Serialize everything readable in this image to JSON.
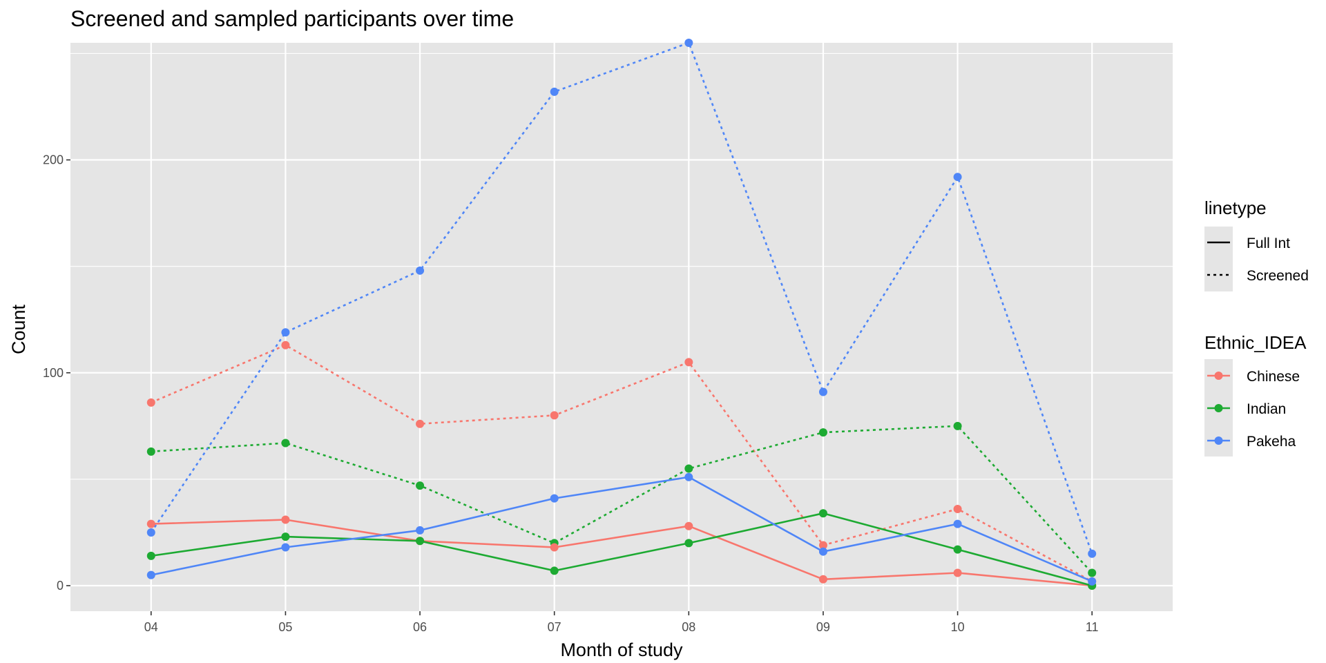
{
  "chart_data": {
    "type": "line",
    "title": "Screened and sampled participants over time",
    "xlabel": "Month of study",
    "ylabel": "Count",
    "categories": [
      "04",
      "05",
      "06",
      "07",
      "08",
      "09",
      "10",
      "11"
    ],
    "ylim": [
      -12,
      255
    ],
    "yticks": [
      0,
      100,
      200
    ],
    "yminor": [
      50,
      150,
      250
    ],
    "colors": {
      "Chinese": "#F8766D",
      "Indian": "#1DAA32",
      "Pakeha": "#4F86F7",
      "panel": "#E5E5E5"
    },
    "legend_linetype": {
      "title": "linetype",
      "items": [
        {
          "label": "Full Int",
          "dash": "solid"
        },
        {
          "label": "Screened",
          "dash": "dotted"
        }
      ]
    },
    "legend_color": {
      "title": "Ethnic_IDEA",
      "items": [
        {
          "label": "Chinese",
          "key": "Chinese"
        },
        {
          "label": "Indian",
          "key": "Indian"
        },
        {
          "label": "Pakeha",
          "key": "Pakeha"
        }
      ]
    },
    "series": [
      {
        "name": "Chinese Screened",
        "group": "Chinese",
        "linetype": "Screened",
        "values": [
          86,
          113,
          76,
          80,
          105,
          19,
          36,
          2
        ]
      },
      {
        "name": "Indian Screened",
        "group": "Indian",
        "linetype": "Screened",
        "values": [
          63,
          67,
          47,
          20,
          55,
          72,
          75,
          6
        ]
      },
      {
        "name": "Pakeha Screened",
        "group": "Pakeha",
        "linetype": "Screened",
        "values": [
          25,
          119,
          148,
          232,
          255,
          91,
          192,
          15
        ]
      },
      {
        "name": "Chinese Full Int",
        "group": "Chinese",
        "linetype": "Full Int",
        "values": [
          29,
          31,
          21,
          18,
          28,
          3,
          6,
          0
        ]
      },
      {
        "name": "Indian Full Int",
        "group": "Indian",
        "linetype": "Full Int",
        "values": [
          14,
          23,
          21,
          7,
          20,
          34,
          17,
          0
        ]
      },
      {
        "name": "Pakeha Full Int",
        "group": "Pakeha",
        "linetype": "Full Int",
        "values": [
          5,
          18,
          26,
          41,
          51,
          16,
          29,
          2
        ]
      }
    ]
  }
}
